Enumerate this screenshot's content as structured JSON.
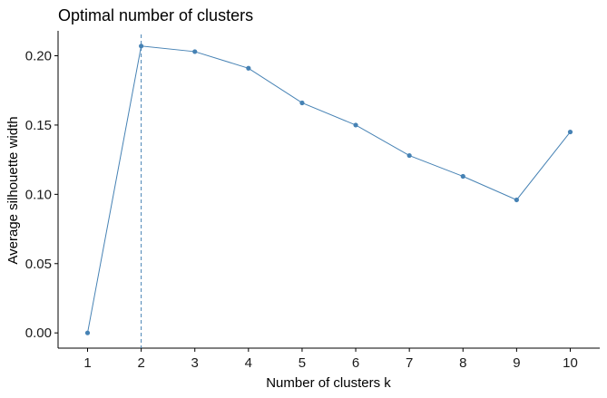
{
  "chart_data": {
    "type": "line",
    "title": "Optimal number of clusters",
    "xlabel": "Number of clusters k",
    "ylabel": "Average silhouette width",
    "categories": [
      "1",
      "2",
      "3",
      "4",
      "5",
      "6",
      "7",
      "8",
      "9",
      "10"
    ],
    "x": [
      1,
      2,
      3,
      4,
      5,
      6,
      7,
      8,
      9,
      10
    ],
    "values": [
      0.0,
      0.207,
      0.203,
      0.191,
      0.166,
      0.15,
      0.128,
      0.113,
      0.096,
      0.145
    ],
    "ylim": [
      -0.011,
      0.218
    ],
    "xlim": [
      0.45,
      10.55
    ],
    "yticks": [
      0.0,
      0.05,
      0.1,
      0.15,
      0.2
    ],
    "ytick_labels": [
      "0.00",
      "0.05",
      "0.10",
      "0.15",
      "0.20"
    ],
    "reference_line": {
      "x": 2,
      "style": "dashed"
    },
    "grid": false,
    "colors": {
      "series": "#4682B4",
      "axis": "#000000"
    }
  }
}
